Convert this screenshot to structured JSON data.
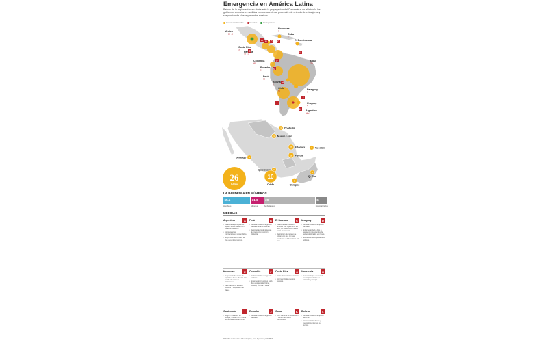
{
  "header": {
    "title": "Emergencia en América Latina",
    "intro": "Países de la región están en alerta ante la propagación del Coronavirus en el inicio la los gobiernos anunciaron medidas como cuarentena, protección de entrada de extranjeros y suspensión de clases y eventos masivos.",
    "legend": [
      {
        "label": "Casos confirmados",
        "color": "#f3b21b"
      },
      {
        "label": "Muertes",
        "color": "#c0262d"
      },
      {
        "label": "Recuperados",
        "color": "#2e9a3c"
      }
    ]
  },
  "latam_map": {
    "labels": [
      {
        "name": "México",
        "value": "26 +1"
      },
      {
        "name": "Honduras",
        "value": "3"
      },
      {
        "name": "Cuba",
        "value": "5"
      },
      {
        "name": "R. Dominicana",
        "value": "5"
      },
      {
        "name": "Costa Rica",
        "value": "35"
      },
      {
        "name": "Panamá",
        "value": "27 +1"
      },
      {
        "name": "Colombia",
        "value": "45"
      },
      {
        "name": "Ecuador",
        "value": "17"
      },
      {
        "name": "Perú",
        "value": "38"
      },
      {
        "name": "Bolivia",
        "value": "3"
      },
      {
        "name": "Brasil",
        "value": "234"
      },
      {
        "name": "Chile",
        "value": "61"
      },
      {
        "name": "Paraguay",
        "value": "6"
      },
      {
        "name": "Uruguay",
        "value": "4"
      },
      {
        "name": "Argentina",
        "value": "34 +2"
      }
    ]
  },
  "mexico_map": {
    "states": [
      {
        "name": "Coahuila",
        "value": "1"
      },
      {
        "name": "Nuevo León",
        "value": "1"
      },
      {
        "name": "Edomex",
        "value": "2"
      },
      {
        "name": "Yucatán",
        "value": "1"
      },
      {
        "name": "Puebla",
        "value": "3"
      },
      {
        "name": "Durango",
        "value": "1"
      },
      {
        "name": "Querétaro",
        "value": "1"
      },
      {
        "name": "CdMx",
        "value": "10"
      },
      {
        "name": "Chiapas",
        "value": "1"
      },
      {
        "name": "Q. Roo",
        "value": "1"
      }
    ],
    "total_value": "26",
    "total_label": "TOTAL"
  },
  "stats": {
    "title": "LA PANDEMIA EN NÚMEROS",
    "items": [
      {
        "value": "65.1",
        "label": "Hombres",
        "share": 0.265,
        "color": "#4bb1d6"
      },
      {
        "value": "31.6",
        "label": "Mujeres",
        "share": 0.125,
        "color": "#c51f6e"
      },
      {
        "value": "20",
        "label": "Ambulatorios",
        "share": 0.5,
        "color": "#b3b3b3"
      },
      {
        "value": "6",
        "label": "Hospitalizados",
        "share": 0.11,
        "color": "#888888"
      }
    ]
  },
  "measures": {
    "title": "MEDIDAS",
    "cards": [
      {
        "country": "Argentina",
        "badge": "A",
        "items": [
          "Cuarentena para quienes lleguen desde países con situación de alerta.",
          "Competencias internacionales suspendidas.",
          "Suspensión de trámites de visa y eventos masivos."
        ]
      },
      {
        "country": "Perú",
        "badge": "B",
        "items": [
          "Declaración de emergencia sanitaria durante 90 días.",
          "Reforzamiento de sistemas de prevención, control y vigilancia."
        ]
      },
      {
        "country": "El Salvador",
        "badge": "C",
        "items": [
          "Cuarentena en todo su territorio con vigencia de 21 días, sin casos confirmados hasta el momento.",
          "Restricción de ingreso de extranjeros que no sean residentes o diplomáticos del país."
        ]
      },
      {
        "country": "Uruguay",
        "badge": "D",
        "items": [
          "Declaración de emergencia sanitaria.",
          "Aislamiento de 14 días a pasajeros provenientes de países declarados en riesgo.",
          "Suspensión de espectáculos públicos."
        ]
      },
      {
        "country": "Honduras",
        "badge": "E",
        "items": [
          "Suspensión de vuelos de migrantes desde México ante la falta de cerco de aislamiento.",
          "Cancelación de eventos masivos y suspensión de clases."
        ]
      },
      {
        "country": "Colombia",
        "badge": "F",
        "items": [
          "Declaración de emergencia sanitaria.",
          "Aislamiento preventivo por 14 días a viajeros de China, España, Francia e Italia."
        ]
      },
      {
        "country": "Costa Rica",
        "badge": "G",
        "items": [
          "Cierre de centros educativos.",
          "Interrupción de eventos masivos."
        ]
      },
      {
        "country": "Venezuela",
        "badge": "H",
        "items": [
          "Suspensión por un mes de vuelos procedentes de Colombia y Europa."
        ]
      },
      {
        "country": "Guatemala",
        "badge": "I",
        "items": [
          "Ningún ciudadano de Europa, China, Irán y Corea podrá visitar a su territorio."
        ]
      },
      {
        "country": "Ecuador",
        "badge": "J",
        "items": [
          "Declaración de emergencia sanitaria."
        ]
      },
      {
        "country": "Cuba",
        "badge": "K",
        "items": [
          "Plan nacional de prevención y control del nuevo coronavirus."
        ]
      },
      {
        "country": "Bolivia",
        "badge": "L",
        "items": [
          "Declaración de emergencia nacional.",
          "Interrupción de clases y vuelos provenientes de Europa."
        ]
      }
    ]
  },
  "source": "FUENTE: Universidad Johns Hopkins, Ssa, Agencias y INFOBAE"
}
